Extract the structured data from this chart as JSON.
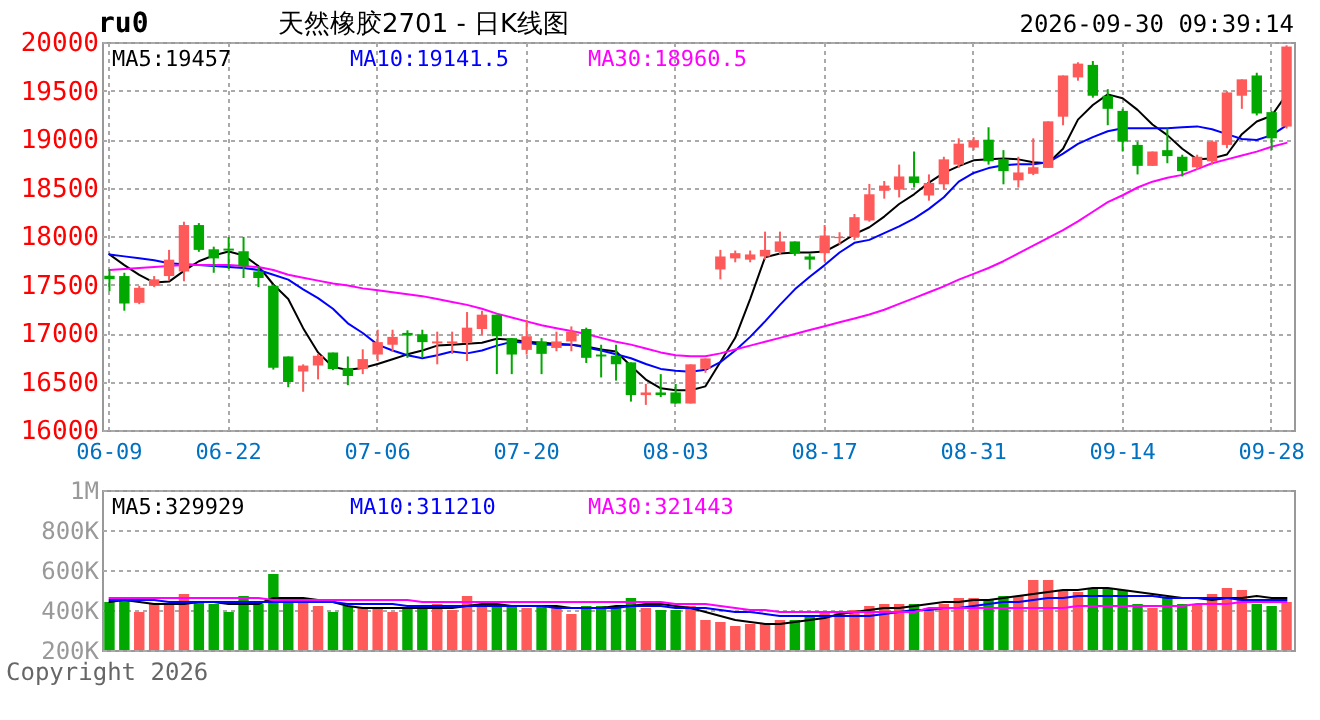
{
  "chart_data": [
    {
      "type": "candlestick",
      "title": "天然橡胶2701 - 日K线图",
      "annotations": [
        "ru0",
        "2026-09-30 09:39:14"
      ],
      "categories": [
        "06-09",
        null,
        null,
        null,
        null,
        null,
        null,
        null,
        "06-22",
        null,
        null,
        null,
        null,
        null,
        null,
        null,
        null,
        null,
        "07-06",
        null,
        null,
        null,
        null,
        null,
        null,
        null,
        null,
        null,
        "07-20",
        null,
        null,
        null,
        null,
        null,
        null,
        null,
        null,
        null,
        "08-03",
        null,
        null,
        null,
        null,
        null,
        null,
        null,
        null,
        null,
        "08-17",
        null,
        null,
        null,
        null,
        null,
        null,
        null,
        null,
        null,
        "08-31",
        null,
        null,
        null,
        null,
        null,
        null,
        null,
        null,
        null,
        "09-14",
        null,
        null,
        null,
        null,
        null,
        null,
        null,
        null,
        null,
        "09-28",
        null
      ],
      "ohlc": [
        [
          17590,
          17655,
          17432,
          17555
        ],
        [
          17587,
          17621,
          17230,
          17304
        ],
        [
          17311,
          17486,
          17297,
          17466
        ],
        [
          17486,
          17587,
          17473,
          17553
        ],
        [
          17587,
          17857,
          17540,
          17756
        ],
        [
          17634,
          18147,
          17533,
          18113
        ],
        [
          18113,
          18133,
          17837,
          17857
        ],
        [
          17863,
          17890,
          17621,
          17769
        ],
        [
          17870,
          17990,
          17660,
          17850
        ],
        [
          17843,
          17991,
          17567,
          17688
        ],
        [
          17634,
          17688,
          17473,
          17567
        ],
        [
          17486,
          17500,
          16623,
          16643
        ],
        [
          16758,
          16758,
          16441,
          16495
        ],
        [
          16603,
          16677,
          16394,
          16664
        ],
        [
          16664,
          16785,
          16522,
          16765
        ],
        [
          16798,
          16798,
          16617,
          16630
        ],
        [
          16637,
          16758,
          16462,
          16556
        ],
        [
          16630,
          16832,
          16576,
          16731
        ],
        [
          16778,
          17034,
          16711,
          16906
        ],
        [
          16879,
          17034,
          16805,
          16960
        ],
        [
          17001,
          17028,
          16744,
          16974
        ],
        [
          16987,
          17034,
          16744,
          16906
        ],
        [
          16893,
          17014,
          16677,
          16913
        ],
        [
          16893,
          17014,
          16785,
          16913
        ],
        [
          16900,
          17216,
          16711,
          17055
        ],
        [
          17041,
          17230,
          16980,
          17189
        ],
        [
          17189,
          17189,
          16576,
          16967
        ],
        [
          16947,
          16947,
          16576,
          16778
        ],
        [
          16826,
          17136,
          16778,
          16967
        ],
        [
          16913,
          16947,
          16576,
          16785
        ],
        [
          16846,
          17014,
          16812,
          16913
        ],
        [
          16913,
          17068,
          16812,
          17014
        ],
        [
          17041,
          17055,
          16691,
          16744
        ],
        [
          16778,
          16879,
          16542,
          16758
        ],
        [
          16765,
          16879,
          16509,
          16677
        ],
        [
          16697,
          16697,
          16293,
          16360
        ],
        [
          16360,
          16475,
          16259,
          16387
        ],
        [
          16387,
          16576,
          16340,
          16360
        ],
        [
          16387,
          16475,
          16273,
          16273
        ],
        [
          16273,
          16677,
          16273,
          16677
        ],
        [
          16630,
          16738,
          16590,
          16738
        ],
        [
          17655,
          17857,
          17553,
          17789
        ],
        [
          17769,
          17850,
          17729,
          17823
        ],
        [
          17756,
          17850,
          17729,
          17810
        ],
        [
          17789,
          18045,
          17756,
          17857
        ],
        [
          17836,
          18045,
          17810,
          17944
        ],
        [
          17944,
          17944,
          17796,
          17823
        ],
        [
          17789,
          17823,
          17655,
          17756
        ],
        [
          17823,
          18113,
          17735,
          18005
        ],
        [
          17978,
          18039,
          17911,
          17991
        ],
        [
          17991,
          18227,
          17958,
          18194
        ],
        [
          18160,
          18537,
          18147,
          18430
        ],
        [
          18466,
          18567,
          18385,
          18520
        ],
        [
          18479,
          18736,
          18398,
          18614
        ],
        [
          18614,
          18871,
          18500,
          18547
        ],
        [
          18418,
          18635,
          18364,
          18547
        ],
        [
          18533,
          18817,
          18479,
          18790
        ],
        [
          18736,
          19007,
          18702,
          18952
        ],
        [
          18912,
          19020,
          18885,
          18986
        ],
        [
          18993,
          19121,
          18736,
          18770
        ],
        [
          18790,
          18885,
          18533,
          18669
        ],
        [
          18574,
          18817,
          18500,
          18655
        ],
        [
          18641,
          19007,
          18628,
          18709
        ],
        [
          18702,
          19182,
          18702,
          19182
        ],
        [
          19230,
          19655,
          19142,
          19655
        ],
        [
          19635,
          19791,
          19601,
          19777
        ],
        [
          19764,
          19804,
          19426,
          19446
        ],
        [
          19446,
          19514,
          19142,
          19311
        ],
        [
          19290,
          19311,
          18871,
          18973
        ],
        [
          18939,
          18973,
          18635,
          18723
        ],
        [
          18723,
          18871,
          18723,
          18871
        ],
        [
          18885,
          19108,
          18750,
          18824
        ],
        [
          18817,
          18838,
          18614,
          18669
        ],
        [
          18709,
          18838,
          18682,
          18817
        ],
        [
          18770,
          18986,
          18736,
          18973
        ],
        [
          18939,
          19493,
          18905,
          19480
        ],
        [
          19446,
          19615,
          19311,
          19615
        ],
        [
          19655,
          19683,
          19243,
          19263
        ],
        [
          19277,
          19290,
          18885,
          19007
        ],
        [
          19128,
          19966,
          19108,
          19953
        ]
      ],
      "colors": [
        "#00a800",
        "#00a800",
        "#ff5a5a",
        "#ff5a5a",
        "#ff5a5a",
        "#ff5a5a",
        "#00a800",
        "#00a800",
        "#00a800",
        "#00a800",
        "#00a800",
        "#00a800",
        "#00a800",
        "#ff5a5a",
        "#ff5a5a",
        "#00a800",
        "#00a800",
        "#ff5a5a",
        "#ff5a5a",
        "#ff5a5a",
        "#00a800",
        "#00a800",
        "#ff5a5a",
        "#ff5a5a",
        "#ff5a5a",
        "#ff5a5a",
        "#00a800",
        "#00a800",
        "#ff5a5a",
        "#00a800",
        "#ff5a5a",
        "#ff5a5a",
        "#00a800",
        "#00a800",
        "#00a800",
        "#00a800",
        "#ff5a5a",
        "#00a800",
        "#00a800",
        "#ff5a5a",
        "#ff5a5a",
        "#ff5a5a",
        "#ff5a5a",
        "#ff5a5a",
        "#ff5a5a",
        "#ff5a5a",
        "#00a800",
        "#00a800",
        "#ff5a5a",
        "#ff5a5a",
        "#ff5a5a",
        "#ff5a5a",
        "#ff5a5a",
        "#ff5a5a",
        "#00a800",
        "#ff5a5a",
        "#ff5a5a",
        "#ff5a5a",
        "#ff5a5a",
        "#00a800",
        "#00a800",
        "#ff5a5a",
        "#ff5a5a",
        "#ff5a5a",
        "#ff5a5a",
        "#ff5a5a",
        "#00a800",
        "#00a800",
        "#00a800",
        "#00a800",
        "#ff5a5a",
        "#00a800",
        "#00a800",
        "#ff5a5a",
        "#ff5a5a",
        "#ff5a5a",
        "#ff5a5a",
        "#00a800",
        "#00a800",
        "#ff5a5a"
      ],
      "series": [
        {
          "type": "line",
          "name": "MA5:19457",
          "color": "#000000",
          "values": [
            17810,
            17700,
            17600,
            17520,
            17530,
            17640,
            17740,
            17800,
            17840,
            17800,
            17690,
            17500,
            17350,
            17050,
            16800,
            16650,
            16620,
            16640,
            16680,
            16730,
            16780,
            16820,
            16870,
            16880,
            16890,
            16900,
            16940,
            16930,
            16910,
            16900,
            16890,
            16880,
            16860,
            16830,
            16810,
            16660,
            16520,
            16430,
            16410,
            16410,
            16450,
            16700,
            16950,
            17350,
            17780,
            17820,
            17830,
            17830,
            17840,
            17920,
            18020,
            18090,
            18200,
            18330,
            18430,
            18550,
            18650,
            18720,
            18780,
            18790,
            18800,
            18790,
            18760,
            18750,
            18900,
            19200,
            19350,
            19460,
            19420,
            19300,
            19150,
            19040,
            18900,
            18790,
            18800,
            18840,
            19050,
            19180,
            19240,
            19460
          ]
        },
        {
          "type": "line",
          "name": "MA10:19141.5",
          "color": "#0000ff",
          "values": [
            17810,
            17790,
            17770,
            17750,
            17720,
            17710,
            17700,
            17690,
            17680,
            17670,
            17650,
            17600,
            17550,
            17450,
            17360,
            17250,
            17100,
            17000,
            16880,
            16820,
            16770,
            16740,
            16770,
            16810,
            16790,
            16820,
            16870,
            16910,
            16900,
            16880,
            16880,
            16880,
            16850,
            16820,
            16780,
            16740,
            16680,
            16630,
            16610,
            16600,
            16620,
            16700,
            16820,
            16960,
            17120,
            17290,
            17450,
            17580,
            17700,
            17830,
            17930,
            17960,
            18030,
            18100,
            18180,
            18280,
            18400,
            18560,
            18650,
            18700,
            18730,
            18740,
            18740,
            18760,
            18850,
            18950,
            19020,
            19080,
            19110,
            19110,
            19110,
            19110,
            19120,
            19130,
            19100,
            19050,
            19000,
            18990,
            19040,
            19140
          ]
        },
        {
          "type": "line",
          "name": "MA30:18960.5",
          "color": "#ff00ff",
          "values": [
            17650,
            17660,
            17670,
            17680,
            17690,
            17700,
            17700,
            17700,
            17700,
            17690,
            17680,
            17650,
            17600,
            17570,
            17540,
            17510,
            17490,
            17460,
            17440,
            17420,
            17400,
            17380,
            17350,
            17320,
            17290,
            17250,
            17200,
            17160,
            17120,
            17080,
            17050,
            17020,
            16990,
            16950,
            16910,
            16880,
            16840,
            16800,
            16770,
            16760,
            16760,
            16790,
            16830,
            16870,
            16910,
            16950,
            16990,
            17030,
            17070,
            17110,
            17150,
            17190,
            17240,
            17300,
            17360,
            17420,
            17480,
            17550,
            17610,
            17670,
            17740,
            17820,
            17900,
            17980,
            18060,
            18150,
            18250,
            18350,
            18420,
            18500,
            18560,
            18600,
            18630,
            18690,
            18750,
            18790,
            18830,
            18870,
            18920,
            18960
          ]
        }
      ],
      "ylim": [
        16000,
        20000
      ],
      "yticks": [
        16000,
        16500,
        17000,
        17500,
        18000,
        18500,
        19000,
        19500,
        20000
      ],
      "grid": true
    },
    {
      "type": "bar",
      "annotations": [
        "Copyright 2026"
      ],
      "tick_labels": "y",
      "categories": [
        null,
        null,
        null,
        null,
        null,
        null,
        null,
        null,
        null,
        null,
        null,
        null,
        null,
        null,
        null,
        null,
        null,
        null,
        null,
        null,
        null,
        null,
        null,
        null,
        null,
        null,
        null,
        null,
        null,
        null,
        null,
        null,
        null,
        null,
        null,
        null,
        null,
        null,
        null,
        null,
        null,
        null,
        null,
        null,
        null,
        null,
        null,
        null,
        null,
        null,
        null,
        null,
        null,
        null,
        null,
        null,
        null,
        null,
        null,
        null,
        null,
        null,
        null,
        null,
        null,
        null,
        null,
        null,
        null,
        null,
        null,
        null,
        null,
        null,
        null,
        null,
        null,
        null,
        null,
        null
      ],
      "series": [
        {
          "type": "bar",
          "values": [
            440000,
            450000,
            390000,
            430000,
            430000,
            480000,
            440000,
            430000,
            390000,
            470000,
            430000,
            580000,
            450000,
            440000,
            420000,
            390000,
            420000,
            410000,
            410000,
            390000,
            410000,
            410000,
            430000,
            400000,
            470000,
            420000,
            420000,
            420000,
            410000,
            420000,
            410000,
            380000,
            420000,
            420000,
            420000,
            460000,
            410000,
            400000,
            400000,
            420000,
            350000,
            340000,
            320000,
            330000,
            330000,
            350000,
            350000,
            370000,
            390000,
            390000,
            400000,
            420000,
            430000,
            430000,
            430000,
            410000,
            430000,
            460000,
            460000,
            450000,
            470000,
            470000,
            550000,
            550000,
            500000,
            490000,
            510000,
            510000,
            500000,
            430000,
            410000,
            460000,
            430000,
            430000,
            480000,
            510000,
            500000,
            430000,
            420000,
            440000
          ],
          "colors": [
            "#00a800",
            "#00a800",
            "#ff5a5a",
            "#ff5a5a",
            "#ff5a5a",
            "#ff5a5a",
            "#00a800",
            "#00a800",
            "#00a800",
            "#00a800",
            "#00a800",
            "#00a800",
            "#00a800",
            "#ff5a5a",
            "#ff5a5a",
            "#00a800",
            "#00a800",
            "#ff5a5a",
            "#ff5a5a",
            "#ff5a5a",
            "#00a800",
            "#00a800",
            "#ff5a5a",
            "#ff5a5a",
            "#ff5a5a",
            "#ff5a5a",
            "#00a800",
            "#00a800",
            "#ff5a5a",
            "#00a800",
            "#ff5a5a",
            "#ff5a5a",
            "#00a800",
            "#00a800",
            "#00a800",
            "#00a800",
            "#ff5a5a",
            "#00a800",
            "#00a800",
            "#ff5a5a",
            "#ff5a5a",
            "#ff5a5a",
            "#ff5a5a",
            "#ff5a5a",
            "#ff5a5a",
            "#ff5a5a",
            "#00a800",
            "#00a800",
            "#ff5a5a",
            "#ff5a5a",
            "#ff5a5a",
            "#ff5a5a",
            "#ff5a5a",
            "#ff5a5a",
            "#00a800",
            "#ff5a5a",
            "#ff5a5a",
            "#ff5a5a",
            "#ff5a5a",
            "#00a800",
            "#00a800",
            "#ff5a5a",
            "#ff5a5a",
            "#ff5a5a",
            "#ff5a5a",
            "#ff5a5a",
            "#00a800",
            "#00a800",
            "#00a800",
            "#00a800",
            "#ff5a5a",
            "#00a800",
            "#00a800",
            "#ff5a5a",
            "#ff5a5a",
            "#ff5a5a",
            "#ff5a5a",
            "#00a800",
            "#00a800",
            "#ff5a5a"
          ]
        },
        {
          "type": "line",
          "name": "MA5:329929",
          "color": "#000000",
          "values": [
            440000,
            450000,
            440000,
            430000,
            430000,
            430000,
            440000,
            440000,
            430000,
            430000,
            430000,
            460000,
            460000,
            460000,
            450000,
            440000,
            420000,
            410000,
            410000,
            410000,
            410000,
            410000,
            410000,
            410000,
            420000,
            430000,
            430000,
            420000,
            420000,
            420000,
            420000,
            410000,
            410000,
            410000,
            420000,
            420000,
            430000,
            430000,
            420000,
            410000,
            390000,
            370000,
            350000,
            340000,
            330000,
            330000,
            340000,
            350000,
            360000,
            380000,
            390000,
            400000,
            410000,
            410000,
            420000,
            430000,
            440000,
            440000,
            450000,
            450000,
            460000,
            470000,
            480000,
            490000,
            500000,
            500000,
            510000,
            510000,
            500000,
            490000,
            480000,
            470000,
            460000,
            460000,
            450000,
            460000,
            460000,
            470000,
            460000,
            460000
          ]
        },
        {
          "type": "line",
          "name": "MA10:311210",
          "color": "#0000ff",
          "values": [
            450000,
            450000,
            450000,
            450000,
            440000,
            440000,
            440000,
            440000,
            440000,
            440000,
            440000,
            440000,
            440000,
            440000,
            440000,
            440000,
            430000,
            430000,
            430000,
            430000,
            420000,
            420000,
            420000,
            420000,
            420000,
            420000,
            420000,
            420000,
            420000,
            420000,
            410000,
            410000,
            410000,
            410000,
            410000,
            420000,
            420000,
            420000,
            410000,
            410000,
            410000,
            400000,
            390000,
            390000,
            380000,
            370000,
            370000,
            370000,
            370000,
            370000,
            370000,
            370000,
            380000,
            390000,
            400000,
            400000,
            410000,
            410000,
            420000,
            430000,
            440000,
            440000,
            450000,
            460000,
            460000,
            470000,
            470000,
            470000,
            470000,
            470000,
            470000,
            460000,
            460000,
            460000,
            460000,
            460000,
            450000,
            450000,
            450000,
            450000
          ]
        },
        {
          "type": "line",
          "name": "MA30:321443",
          "color": "#ff00ff",
          "values": [
            460000,
            460000,
            460000,
            460000,
            460000,
            460000,
            460000,
            460000,
            460000,
            460000,
            460000,
            450000,
            450000,
            450000,
            450000,
            450000,
            450000,
            450000,
            450000,
            450000,
            450000,
            440000,
            440000,
            440000,
            440000,
            440000,
            440000,
            440000,
            440000,
            440000,
            440000,
            440000,
            440000,
            440000,
            440000,
            440000,
            440000,
            440000,
            430000,
            430000,
            430000,
            420000,
            410000,
            400000,
            400000,
            390000,
            390000,
            390000,
            390000,
            390000,
            390000,
            390000,
            390000,
            390000,
            390000,
            410000,
            410000,
            410000,
            410000,
            410000,
            410000,
            410000,
            410000,
            410000,
            410000,
            420000,
            420000,
            420000,
            420000,
            420000,
            420000,
            420000,
            420000,
            430000,
            430000,
            430000,
            440000,
            440000,
            440000,
            440000
          ]
        }
      ],
      "ylim": [
        200000,
        1000000
      ],
      "yticks": [
        {
          "value": 200000,
          "label": "200K"
        },
        {
          "value": 400000,
          "label": "400K"
        },
        {
          "value": 600000,
          "label": "600K"
        },
        {
          "value": 800000,
          "label": "800K"
        },
        {
          "value": 1000000,
          "label": "1M"
        }
      ],
      "grid": "y"
    }
  ]
}
